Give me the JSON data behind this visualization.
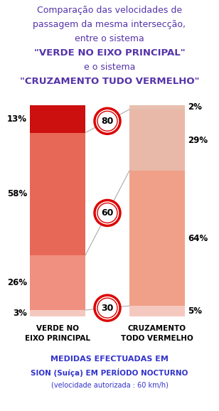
{
  "title_lines": [
    "Comparação das velocidades de",
    "passagem da mesma intersecção,",
    "entre o sistema",
    "\"VERDE NO EIXO PRINCIPAL\"",
    "e o sistema",
    "\"CRUZAMENTO TUDO VERMELHO\""
  ],
  "title_color": "#5533aa",
  "bar1_label1": "VERDE NO",
  "bar1_label2": "EIXO PRINCIPAL",
  "bar2_label1": "CRUZAMENTO",
  "bar2_label2": "TODO VERMELHO",
  "bar1_segments": [
    3,
    26,
    58,
    13
  ],
  "bar2_segments": [
    5,
    64,
    29,
    2
  ],
  "bar1_colors": [
    "#f5c8bf",
    "#f09080",
    "#e86858",
    "#cc1010"
  ],
  "bar2_colors": [
    "#f5c8bf",
    "#f0a088",
    "#e8b8a8",
    "#e8c0b0"
  ],
  "bar1_labels_left": [
    "3%",
    "26%",
    "58%",
    "13%"
  ],
  "bar2_labels_right": [
    "5%",
    "64%",
    "29%",
    "2%"
  ],
  "speeds": [
    30,
    60,
    80
  ],
  "footer_line1": "MEDIDAS EFECTUADAS EM",
  "footer_line2": "SION (Suíça) EM PERÍODO NOCTURNO",
  "footer_line3": "(velocidade autorizada : 60 km/h)",
  "footer_color": "#3333cc",
  "bg_color": "#ffffff"
}
